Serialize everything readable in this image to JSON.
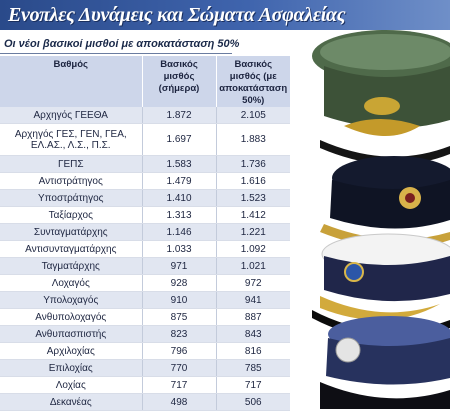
{
  "header": {
    "title": "Ενοπλες Δυνάμεις και Σώματα Ασφαλείας"
  },
  "subtitle": "Οι νέοι βασικοί μισθοί με αποκατάσταση 50%",
  "table": {
    "columns": [
      "Βαθμός",
      "Βασικός μισθός (σήμερα)",
      "Βασικός μισθός (με αποκατάσταση 50%)"
    ],
    "rows": [
      {
        "rank": "Αρχηγός ΓΕΕΘΑ",
        "today": "1.872",
        "restored": "2.105"
      },
      {
        "rank": "Αρχηγός ΓΕΣ, ΓΕΝ, ΓΕΑ, ΕΛ.ΑΣ., Λ.Σ., Π.Σ.",
        "today": "1.697",
        "restored": "1.883"
      },
      {
        "rank": "ΓΕΠΣ",
        "today": "1.583",
        "restored": "1.736"
      },
      {
        "rank": "Αντιστράτηγος",
        "today": "1.479",
        "restored": "1.616"
      },
      {
        "rank": "Υποστράτηγος",
        "today": "1.410",
        "restored": "1.523"
      },
      {
        "rank": "Ταξίαρχος",
        "today": "1.313",
        "restored": "1.412"
      },
      {
        "rank": "Συνταγματάρχης",
        "today": "1.146",
        "restored": "1.221"
      },
      {
        "rank": "Αντισυνταγματάρχης",
        "today": "1.033",
        "restored": "1.092"
      },
      {
        "rank": "Ταγματάρχης",
        "today": "971",
        "restored": "1.021"
      },
      {
        "rank": "Λοχαγός",
        "today": "928",
        "restored": "972"
      },
      {
        "rank": "Υπολοχαγός",
        "today": "910",
        "restored": "941"
      },
      {
        "rank": "Ανθυπολοχαγός",
        "today": "875",
        "restored": "887"
      },
      {
        "rank": "Ανθυπασπιστής",
        "today": "823",
        "restored": "843"
      },
      {
        "rank": "Αρχιλοχίας",
        "today": "796",
        "restored": "816"
      },
      {
        "rank": "Επιλοχίας",
        "today": "770",
        "restored": "785"
      },
      {
        "rank": "Λοχίας",
        "today": "717",
        "restored": "717"
      },
      {
        "rank": "Δεκανέας",
        "today": "498",
        "restored": "506"
      }
    ]
  },
  "colors": {
    "header_band": "#3f64ad",
    "table_header": "#cdd6ea",
    "row_band": "#e1e6f1",
    "text": "#1d2540"
  },
  "photo": {
    "caps": [
      "green-officer-cap",
      "navy-officer-cap",
      "white-officer-cap",
      "blue-police-cap"
    ]
  }
}
